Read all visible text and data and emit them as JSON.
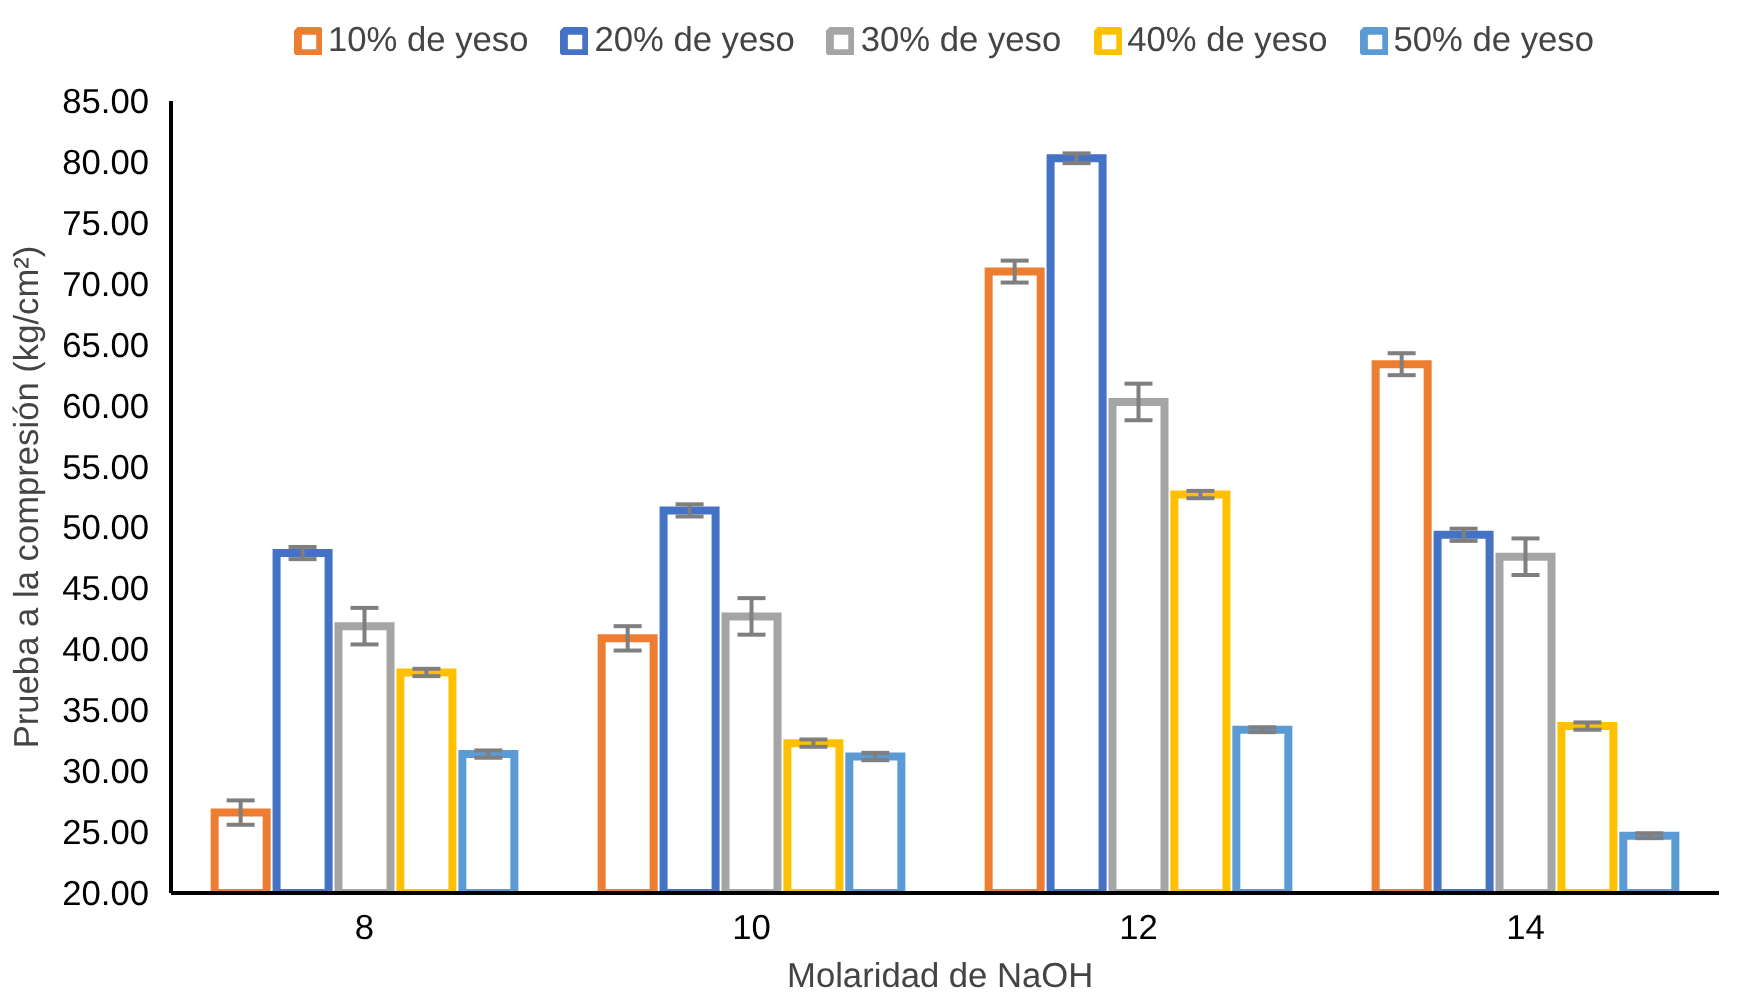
{
  "chart_data": {
    "type": "bar",
    "xlabel": "Molaridad  de NaOH",
    "ylabel": "Prueba a la compresión (kg/cm²)",
    "categories": [
      "8",
      "10",
      "12",
      "14"
    ],
    "series": [
      {
        "name": "10% de yeso",
        "color": "#ed7d31",
        "values": [
          26.6,
          40.9,
          71.0,
          63.4
        ],
        "errors": [
          1.0,
          1.0,
          0.9,
          0.9
        ]
      },
      {
        "name": "20% de yeso",
        "color": "#4472c4",
        "values": [
          47.9,
          51.4,
          80.3,
          49.4
        ],
        "errors": [
          0.5,
          0.5,
          0.4,
          0.5
        ]
      },
      {
        "name": "30% de yeso",
        "color": "#a5a5a5",
        "values": [
          41.9,
          42.7,
          60.3,
          47.6
        ],
        "errors": [
          1.5,
          1.5,
          1.5,
          1.5
        ]
      },
      {
        "name": "40% de yeso",
        "color": "#ffc000",
        "values": [
          38.1,
          32.3,
          52.7,
          33.7
        ],
        "errors": [
          0.3,
          0.3,
          0.3,
          0.3
        ]
      },
      {
        "name": "50% de yeso",
        "color": "#5b9bd5",
        "values": [
          31.4,
          31.2,
          33.4,
          24.7
        ],
        "errors": [
          0.3,
          0.3,
          0.2,
          0.2
        ]
      }
    ],
    "ylim": [
      20,
      85
    ],
    "yticks": [
      {
        "value": 20,
        "label": "20.00"
      },
      {
        "value": 25,
        "label": "25.00"
      },
      {
        "value": 30,
        "label": "30.00"
      },
      {
        "value": 35,
        "label": "35.00"
      },
      {
        "value": 40,
        "label": "40.00"
      },
      {
        "value": 45,
        "label": "45.00"
      },
      {
        "value": 50,
        "label": "50.00"
      },
      {
        "value": 55,
        "label": "55.00"
      },
      {
        "value": 60,
        "label": "60.00"
      },
      {
        "value": 65,
        "label": "65.00"
      },
      {
        "value": 70,
        "label": "70.00"
      },
      {
        "value": 75,
        "label": "75.00"
      },
      {
        "value": 80,
        "label": "80.00"
      },
      {
        "value": 85,
        "label": "85.00"
      }
    ],
    "grid": false,
    "legend": "top"
  }
}
